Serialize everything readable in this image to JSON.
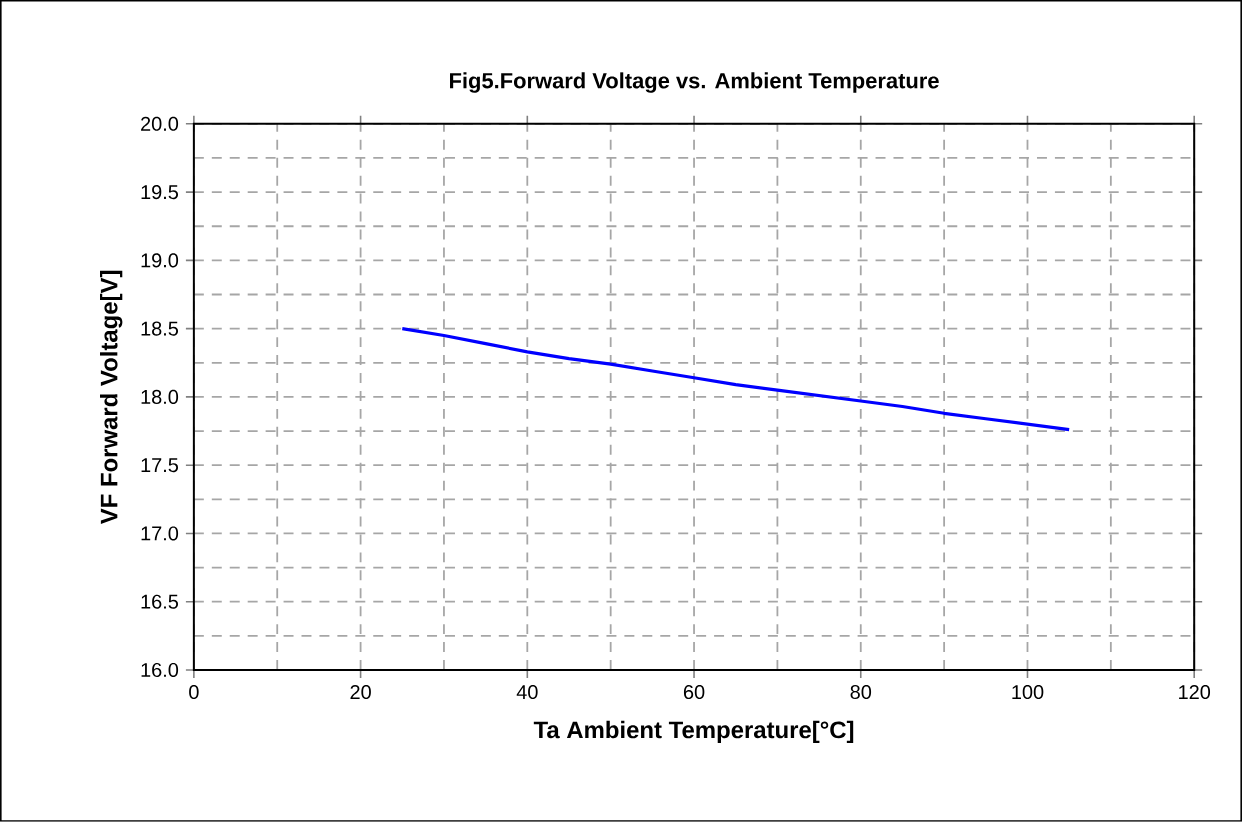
{
  "chart_data": {
    "type": "line",
    "title": "Fig5.Forward Voltage vs. Ambient Temperature",
    "xlabel": "Ta Ambient Temperature[°C]",
    "ylabel": "VF Forward Voltage[V]",
    "x": [
      25,
      30,
      35,
      40,
      45,
      50,
      55,
      60,
      65,
      70,
      75,
      80,
      85,
      90,
      95,
      100,
      105
    ],
    "series": [
      {
        "color": "#0000ff",
        "values": [
          18.5,
          18.45,
          18.39,
          18.33,
          18.28,
          18.24,
          18.19,
          18.14,
          18.09,
          18.05,
          18.01,
          17.97,
          17.93,
          17.88,
          17.84,
          17.8,
          17.76
        ]
      }
    ],
    "xlim": [
      0,
      120
    ],
    "ylim": [
      16.0,
      20.0
    ],
    "xticks": [
      0,
      20,
      40,
      60,
      80,
      100,
      120
    ],
    "yticks": [
      {
        "value": 16.0,
        "label": "16.0"
      },
      {
        "value": 16.5,
        "label": "16.5"
      },
      {
        "value": 17.0,
        "label": "17.0"
      },
      {
        "value": 17.5,
        "label": "17.5"
      },
      {
        "value": 18.0,
        "label": "18.0"
      },
      {
        "value": 18.5,
        "label": "18.5"
      },
      {
        "value": 19.0,
        "label": "19.0"
      },
      {
        "value": 19.5,
        "label": "19.5"
      },
      {
        "value": 20.0,
        "label": "20.0"
      }
    ],
    "grid": true,
    "marker": "none",
    "line_style": "solid"
  }
}
